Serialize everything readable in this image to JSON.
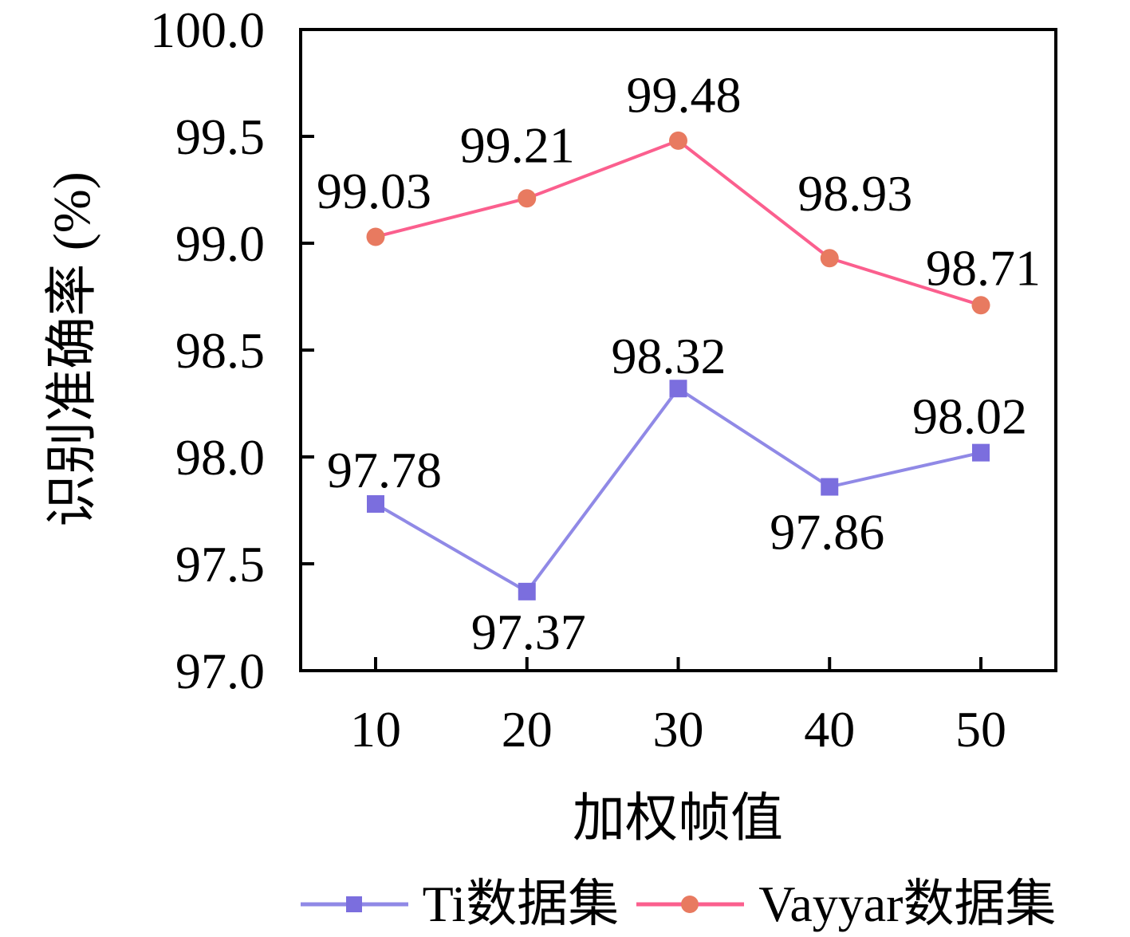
{
  "figure": {
    "background": "#ffffff",
    "text_color": "#000000",
    "axis_color": "#000000"
  },
  "chart_data": {
    "type": "line",
    "title": "",
    "xlabel": "加权帧值",
    "ylabel": "识别准确率 (%)",
    "x": [
      10,
      20,
      30,
      40,
      50
    ],
    "x_tick_labels": [
      "10",
      "20",
      "30",
      "40",
      "50"
    ],
    "ylim": [
      97.0,
      100.0
    ],
    "y_ticks": [
      97.0,
      97.5,
      98.0,
      98.5,
      99.0,
      99.5,
      100.0
    ],
    "y_tick_labels": [
      "97.0",
      "97.5",
      "98.0",
      "98.5",
      "99.0",
      "99.5",
      "100.0"
    ],
    "grid": false,
    "tick_direction": "in",
    "legend_position": "bottom-center",
    "series": [
      {
        "name": "Ti数据集",
        "values": [
          97.78,
          97.37,
          98.32,
          97.86,
          98.02
        ],
        "data_labels": [
          "97.78",
          "97.37",
          "98.32",
          "97.86",
          "98.02"
        ],
        "label_offsets": [
          [
            11,
            -21
          ],
          [
            2,
            72
          ],
          [
            -12,
            -19
          ],
          [
            -3,
            78
          ],
          [
            -14,
            -24
          ]
        ],
        "marker": "square",
        "line_color": "#9089e6",
        "marker_color": "#7b6ede"
      },
      {
        "name": "Vayyar数据集",
        "values": [
          99.03,
          99.21,
          99.48,
          98.93,
          98.71
        ],
        "data_labels": [
          "99.03",
          "99.21",
          "99.48",
          "98.93",
          "98.71"
        ],
        "label_offsets": [
          [
            -2,
            -36
          ],
          [
            -12,
            -45
          ],
          [
            7,
            -36
          ],
          [
            32,
            -60
          ],
          [
            3,
            -25
          ]
        ],
        "marker": "circle",
        "line_color": "#fb5f8e",
        "marker_color": "#e87a60"
      }
    ]
  }
}
